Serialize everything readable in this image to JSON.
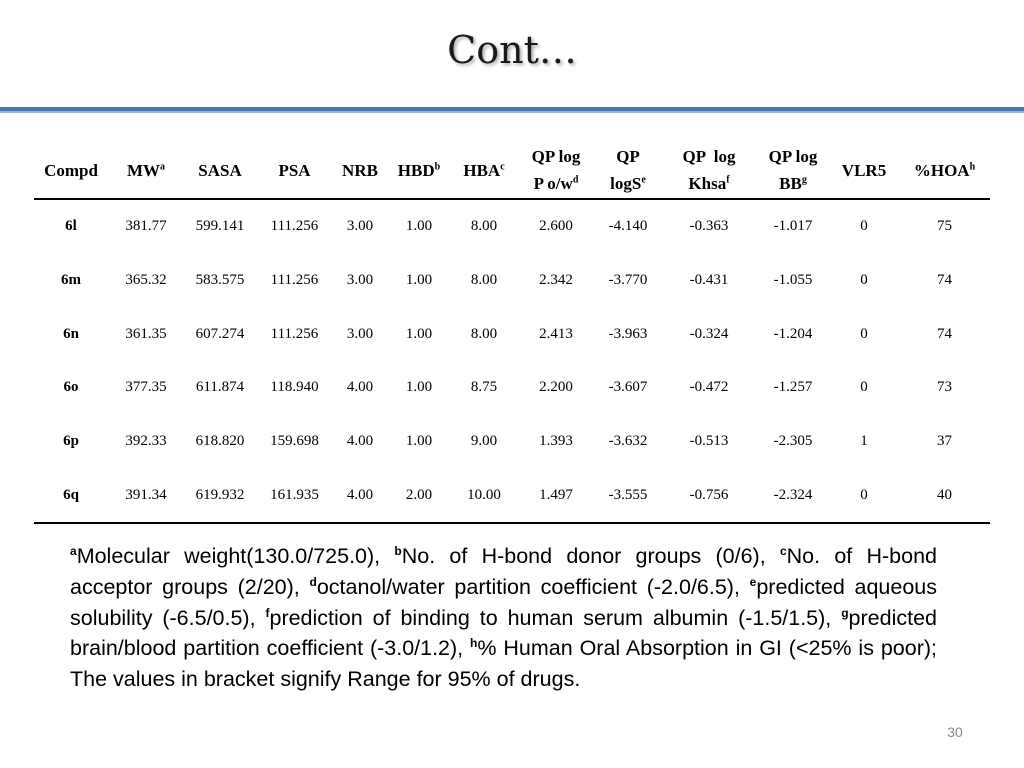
{
  "slide": {
    "title": "Cont…",
    "page_number": "30",
    "accent_colors": {
      "rule_top": "#4a76ad",
      "rule_bottom": "#9bb6d6"
    }
  },
  "table": {
    "headers": [
      {
        "text": "Compd",
        "sup": ""
      },
      {
        "text": "MW",
        "sup": "a"
      },
      {
        "text": "SASA",
        "sup": ""
      },
      {
        "text": "PSA",
        "sup": ""
      },
      {
        "text": "NRB",
        "sup": ""
      },
      {
        "text": "HBD",
        "sup": "b"
      },
      {
        "text": "HBA",
        "sup": "c"
      },
      {
        "line1": "QP log",
        "line2": "P o/w",
        "sup": "d"
      },
      {
        "line1": "QP",
        "line2": "logS",
        "sup": "e"
      },
      {
        "line1": "QP  log",
        "line2": "Khsa",
        "sup": "f"
      },
      {
        "line1": "QP log",
        "line2": "BB",
        "sup": "g"
      },
      {
        "text": "VLR5",
        "sup": ""
      },
      {
        "text": "%HOA",
        "sup": "h"
      }
    ],
    "rows": [
      [
        "6l",
        "381.77",
        "599.141",
        "111.256",
        "3.00",
        "1.00",
        "8.00",
        "2.600",
        "-4.140",
        "-0.363",
        "-1.017",
        "0",
        "75"
      ],
      [
        "6m",
        "365.32",
        "583.575",
        "111.256",
        "3.00",
        "1.00",
        "8.00",
        "2.342",
        "-3.770",
        "-0.431",
        "-1.055",
        "0",
        "74"
      ],
      [
        "6n",
        "361.35",
        "607.274",
        "111.256",
        "3.00",
        "1.00",
        "8.00",
        "2.413",
        "-3.963",
        "-0.324",
        "-1.204",
        "0",
        "74"
      ],
      [
        "6o",
        "377.35",
        "611.874",
        "118.940",
        "4.00",
        "1.00",
        "8.75",
        "2.200",
        "-3.607",
        "-0.472",
        "-1.257",
        "0",
        "73"
      ],
      [
        "6p",
        "392.33",
        "618.820",
        "159.698",
        "4.00",
        "1.00",
        "9.00",
        "1.393",
        "-3.632",
        "-0.513",
        "-2.305",
        "1",
        "37"
      ],
      [
        "6q",
        "391.34",
        "619.932",
        "161.935",
        "4.00",
        "2.00",
        "10.00",
        "1.497",
        "-3.555",
        "-0.756",
        "-2.324",
        "0",
        "40"
      ]
    ]
  },
  "footnotes": {
    "a": {
      "mark": "a",
      "text": "Molecular weight(130.0/725.0), "
    },
    "b": {
      "mark": "b",
      "text": "No. of H-bond donor groups (0/6), "
    },
    "c": {
      "mark": "c",
      "text": "No. of H-bond acceptor groups (2/20), "
    },
    "d": {
      "mark": "d",
      "text": "octanol/water partition coefficient (-2.0/6.5), "
    },
    "e": {
      "mark": "e",
      "text": "predicted aqueous solubility (-6.5/0.5), "
    },
    "f": {
      "mark": "f",
      "text": "prediction of binding to human serum albumin (-1.5/1.5), "
    },
    "g": {
      "mark": "g",
      "text": "predicted brain/blood partition coefficient (-3.0/1.2), "
    },
    "h": {
      "mark": "h",
      "text": "% Human Oral Absorption in GI (<25% is poor); The values in bracket signify Range for 95% of drugs."
    }
  }
}
